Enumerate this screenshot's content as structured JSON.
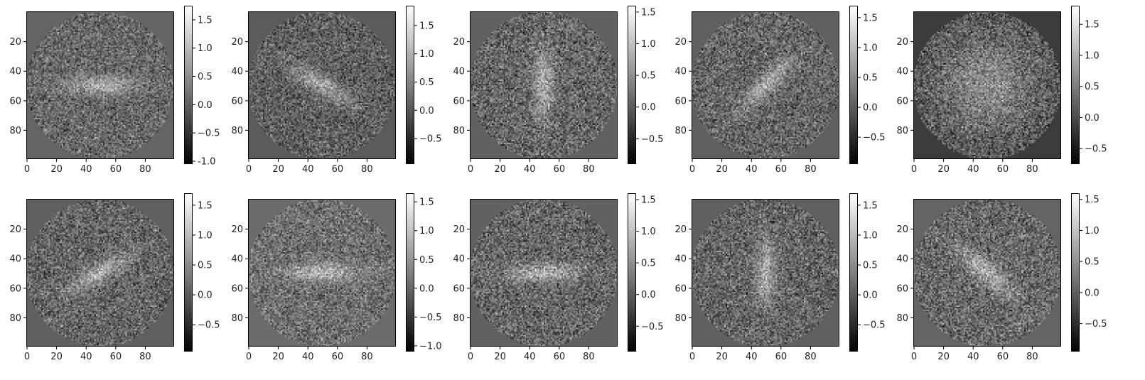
{
  "chart_data": [
    {
      "type": "heatmap",
      "panel": 1,
      "orientation_deg": 0,
      "cbar_min": -1.05,
      "cbar_max": 1.75,
      "cbar_ticks": [
        "-1.0",
        "−0.5",
        "0.0",
        "0.5",
        "1.0",
        "1.5"
      ],
      "cbar_values": [
        -1.0,
        -0.5,
        0.0,
        0.5,
        1.0,
        1.5
      ],
      "xticks": [
        "0",
        "20",
        "40",
        "60",
        "80"
      ],
      "yticks": [
        "20",
        "40",
        "60",
        "80"
      ],
      "xlim": [
        0,
        100
      ],
      "ylim": [
        100,
        0
      ]
    },
    {
      "type": "heatmap",
      "panel": 2,
      "orientation_deg": 30,
      "cbar_min": -0.95,
      "cbar_max": 1.85,
      "cbar_ticks": [
        "−0.5",
        "0.0",
        "0.5",
        "1.0",
        "1.5"
      ],
      "cbar_values": [
        -0.5,
        0.0,
        0.5,
        1.0,
        1.5
      ],
      "xticks": [
        "0",
        "20",
        "40",
        "60",
        "80"
      ],
      "yticks": [
        "20",
        "40",
        "60",
        "80"
      ],
      "xlim": [
        0,
        100
      ],
      "ylim": [
        100,
        0
      ]
    },
    {
      "type": "heatmap",
      "panel": 3,
      "orientation_deg": 90,
      "cbar_min": -0.9,
      "cbar_max": 1.6,
      "cbar_ticks": [
        "−0.5",
        "0.0",
        "0.5",
        "1.0",
        "1.5"
      ],
      "cbar_values": [
        -0.5,
        0.0,
        0.5,
        1.0,
        1.5
      ],
      "xticks": [
        "0",
        "20",
        "40",
        "60",
        "80"
      ],
      "yticks": [
        "20",
        "40",
        "60",
        "80"
      ],
      "xlim": [
        0,
        100
      ],
      "ylim": [
        100,
        0
      ]
    },
    {
      "type": "heatmap",
      "panel": 4,
      "orientation_deg": -45,
      "cbar_min": -0.95,
      "cbar_max": 1.7,
      "cbar_ticks": [
        "−0.5",
        "0.0",
        "0.5",
        "1.0",
        "1.5"
      ],
      "cbar_values": [
        -0.5,
        0.0,
        0.5,
        1.0,
        1.5
      ],
      "xticks": [
        "0",
        "20",
        "40",
        "60",
        "80"
      ],
      "yticks": [
        "20",
        "40",
        "60",
        "80"
      ],
      "xlim": [
        0,
        100
      ],
      "ylim": [
        100,
        0
      ]
    },
    {
      "type": "heatmap",
      "panel": 5,
      "orientation_deg": null,
      "cbar_min": -0.75,
      "cbar_max": 1.8,
      "cbar_ticks": [
        "−0.5",
        "0.0",
        "0.5",
        "1.0",
        "1.5"
      ],
      "cbar_values": [
        -0.5,
        0.0,
        0.5,
        1.0,
        1.5
      ],
      "xticks": [
        "0",
        "20",
        "40",
        "60",
        "80"
      ],
      "yticks": [
        "20",
        "40",
        "60",
        "80"
      ],
      "xlim": [
        0,
        100
      ],
      "ylim": [
        100,
        0
      ]
    },
    {
      "type": "heatmap",
      "panel": 6,
      "orientation_deg": -30,
      "cbar_min": -0.95,
      "cbar_max": 1.7,
      "cbar_ticks": [
        "−0.5",
        "0.0",
        "0.5",
        "1.0",
        "1.5"
      ],
      "cbar_values": [
        -0.5,
        0.0,
        0.5,
        1.0,
        1.5
      ],
      "xticks": [
        "0",
        "20",
        "40",
        "60",
        "80"
      ],
      "yticks": [
        "20",
        "40",
        "60",
        "80"
      ],
      "xlim": [
        0,
        100
      ],
      "ylim": [
        100,
        0
      ]
    },
    {
      "type": "heatmap",
      "panel": 7,
      "orientation_deg": 0,
      "cbar_min": -1.1,
      "cbar_max": 1.65,
      "cbar_ticks": [
        "−1.0",
        "−0.5",
        "0.0",
        "0.5",
        "1.0",
        "1.5"
      ],
      "cbar_values": [
        -1.0,
        -0.5,
        0.0,
        0.5,
        1.0,
        1.5
      ],
      "xticks": [
        "0",
        "20",
        "40",
        "60",
        "80"
      ],
      "yticks": [
        "20",
        "40",
        "60",
        "80"
      ],
      "xlim": [
        0,
        100
      ],
      "ylim": [
        100,
        0
      ]
    },
    {
      "type": "heatmap",
      "panel": 8,
      "orientation_deg": 0,
      "cbar_min": -0.9,
      "cbar_max": 1.6,
      "cbar_ticks": [
        "−0.5",
        "0.0",
        "0.5",
        "1.0",
        "1.5"
      ],
      "cbar_values": [
        -0.5,
        0.0,
        0.5,
        1.0,
        1.5
      ],
      "xticks": [
        "0",
        "20",
        "40",
        "60",
        "80"
      ],
      "yticks": [
        "20",
        "40",
        "60",
        "80"
      ],
      "xlim": [
        0,
        100
      ],
      "ylim": [
        100,
        0
      ]
    },
    {
      "type": "heatmap",
      "panel": 9,
      "orientation_deg": 90,
      "cbar_min": -0.95,
      "cbar_max": 1.7,
      "cbar_ticks": [
        "−0.5",
        "0.0",
        "0.5",
        "1.0",
        "1.5"
      ],
      "cbar_values": [
        -0.5,
        0.0,
        0.5,
        1.0,
        1.5
      ],
      "xticks": [
        "0",
        "20",
        "40",
        "60",
        "80"
      ],
      "yticks": [
        "20",
        "40",
        "60",
        "80"
      ],
      "xlim": [
        0,
        100
      ],
      "ylim": [
        100,
        0
      ]
    },
    {
      "type": "heatmap",
      "panel": 10,
      "orientation_deg": 40,
      "cbar_min": -0.95,
      "cbar_max": 1.6,
      "cbar_ticks": [
        "−0.5",
        "0.0",
        "0.5",
        "1.0",
        "1.5"
      ],
      "cbar_values": [
        -0.5,
        0.0,
        0.5,
        1.0,
        1.5
      ],
      "xticks": [
        "0",
        "20",
        "40",
        "60",
        "80"
      ],
      "yticks": [
        "20",
        "40",
        "60",
        "80"
      ],
      "xlim": [
        0,
        100
      ],
      "ylim": [
        100,
        0
      ]
    }
  ],
  "colormap": "gray",
  "colors": {
    "background_fill": "#5a5a5a",
    "axis": "#000000"
  }
}
